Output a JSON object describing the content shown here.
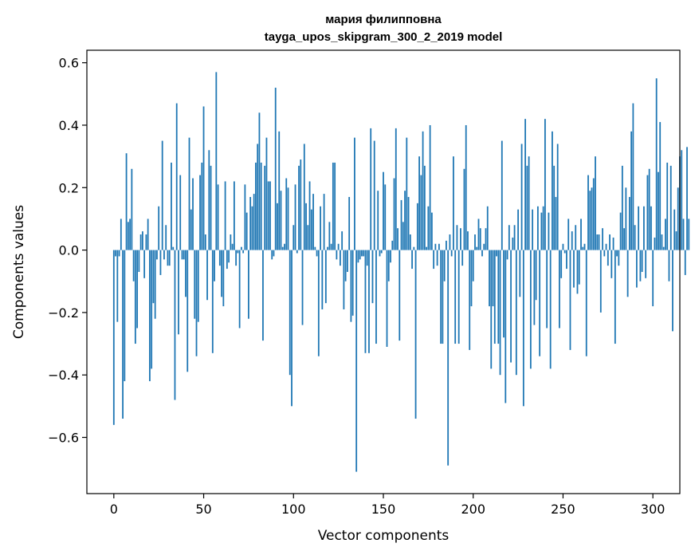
{
  "chart_data": {
    "type": "bar",
    "title": "мария филипповна",
    "subtitle": "tayga_upos_skipgram_300_2_2019 model",
    "xlabel": "Vector components",
    "ylabel": "Components values",
    "xlim": [
      -15,
      315
    ],
    "ylim": [
      -0.78,
      0.64
    ],
    "xticks": [
      0,
      50,
      100,
      150,
      200,
      250,
      300
    ],
    "yticks": [
      -0.6,
      -0.4,
      -0.2,
      0.0,
      0.2,
      0.4,
      0.6
    ],
    "xtick_labels": [
      "0",
      "50",
      "100",
      "150",
      "200",
      "250",
      "300"
    ],
    "ytick_labels": [
      "−0.6",
      "−0.4",
      "−0.2",
      "0.0",
      "0.2",
      "0.4",
      "0.6"
    ],
    "bar_color": "#1f77b4",
    "grid": false,
    "values": [
      -0.56,
      -0.02,
      -0.23,
      -0.02,
      0.1,
      -0.54,
      -0.42,
      0.31,
      0.09,
      0.1,
      0.26,
      -0.1,
      -0.3,
      -0.25,
      -0.07,
      0.05,
      0.06,
      -0.09,
      0.05,
      0.1,
      -0.42,
      -0.38,
      -0.17,
      -0.22,
      -0.03,
      0.14,
      -0.08,
      0.35,
      -0.03,
      0.08,
      -0.05,
      -0.05,
      0.28,
      0.01,
      -0.48,
      0.47,
      -0.27,
      0.24,
      -0.03,
      -0.03,
      -0.15,
      -0.39,
      0.36,
      0.13,
      0.23,
      -0.22,
      -0.34,
      -0.23,
      0.24,
      0.28,
      0.46,
      0.05,
      -0.16,
      0.32,
      0.27,
      -0.33,
      -0.1,
      0.57,
      0.21,
      -0.05,
      -0.15,
      -0.18,
      0.22,
      -0.06,
      -0.04,
      0.05,
      0.02,
      0.22,
      -0.05,
      -0.01,
      -0.25,
      0.01,
      -0.01,
      0.21,
      0.12,
      -0.22,
      0.17,
      0.14,
      0.18,
      0.28,
      0.34,
      0.44,
      0.28,
      -0.29,
      0.27,
      0.36,
      0.22,
      0.22,
      -0.03,
      -0.02,
      0.52,
      0.15,
      0.38,
      0.19,
      0.01,
      0.02,
      0.23,
      0.2,
      -0.4,
      -0.5,
      0.08,
      0.21,
      -0.01,
      0.27,
      0.29,
      -0.24,
      0.34,
      0.15,
      0.08,
      0.22,
      0.13,
      0.18,
      0.01,
      -0.02,
      -0.34,
      0.14,
      -0.19,
      0.18,
      -0.17,
      0.01,
      0.09,
      0.02,
      0.28,
      0.28,
      -0.03,
      0.02,
      -0.05,
      0.06,
      -0.19,
      -0.1,
      -0.07,
      0.17,
      -0.23,
      -0.21,
      0.36,
      -0.71,
      -0.04,
      -0.03,
      -0.02,
      -0.02,
      -0.33,
      -0.05,
      -0.33,
      0.39,
      -0.17,
      0.35,
      -0.3,
      0.19,
      -0.02,
      -0.01,
      0.25,
      0.21,
      -0.31,
      -0.1,
      -0.04,
      0.03,
      0.23,
      0.39,
      0.07,
      -0.29,
      0.16,
      0.09,
      0.19,
      0.36,
      0.17,
      0.05,
      -0.06,
      0.01,
      -0.54,
      0.15,
      0.3,
      0.24,
      0.38,
      0.27,
      0.01,
      0.14,
      0.4,
      0.12,
      -0.06,
      0.02,
      -0.05,
      0.02,
      -0.3,
      -0.3,
      -0.1,
      0.03,
      -0.69,
      0.05,
      -0.02,
      0.3,
      -0.3,
      0.08,
      -0.3,
      0.07,
      -0.05,
      0.26,
      0.4,
      0.06,
      -0.32,
      -0.18,
      -0.1,
      0.05,
      0.01,
      0.1,
      0.07,
      -0.02,
      0.02,
      0.07,
      0.14,
      -0.18,
      -0.38,
      -0.18,
      -0.3,
      -0.02,
      -0.3,
      -0.4,
      0.35,
      -0.28,
      -0.49,
      -0.03,
      0.08,
      -0.36,
      0.04,
      0.08,
      -0.4,
      0.13,
      -0.15,
      0.34,
      -0.5,
      0.42,
      0.27,
      0.3,
      -0.38,
      0.13,
      -0.24,
      -0.16,
      0.14,
      -0.34,
      0.12,
      0.14,
      0.42,
      -0.25,
      0.12,
      -0.38,
      0.38,
      0.27,
      0.17,
      0.34,
      -0.25,
      -0.09,
      0.02,
      -0.01,
      -0.06,
      0.1,
      -0.32,
      0.06,
      -0.12,
      0.08,
      -0.14,
      -0.11,
      0.1,
      0.01,
      0.02,
      -0.34,
      0.24,
      0.19,
      0.2,
      0.23,
      0.3,
      0.05,
      0.05,
      -0.2,
      0.07,
      -0.02,
      0.02,
      -0.05,
      0.05,
      -0.09,
      0.04,
      -0.3,
      -0.02,
      -0.05,
      0.12,
      0.27,
      0.07,
      0.2,
      -0.15,
      0.17,
      0.38,
      0.47,
      0.08,
      -0.12,
      0.14,
      -0.1,
      -0.07,
      0.14,
      -0.09,
      0.24,
      0.26,
      0.14,
      -0.18,
      0.04,
      0.55,
      0.25,
      0.41,
      0.05,
      0.01,
      0.1,
      0.28,
      -0.1,
      0.27,
      -0.26,
      0.13,
      0.06,
      0.2,
      0.3,
      0.32,
      0.1,
      -0.08,
      0.33,
      0.1
    ]
  }
}
